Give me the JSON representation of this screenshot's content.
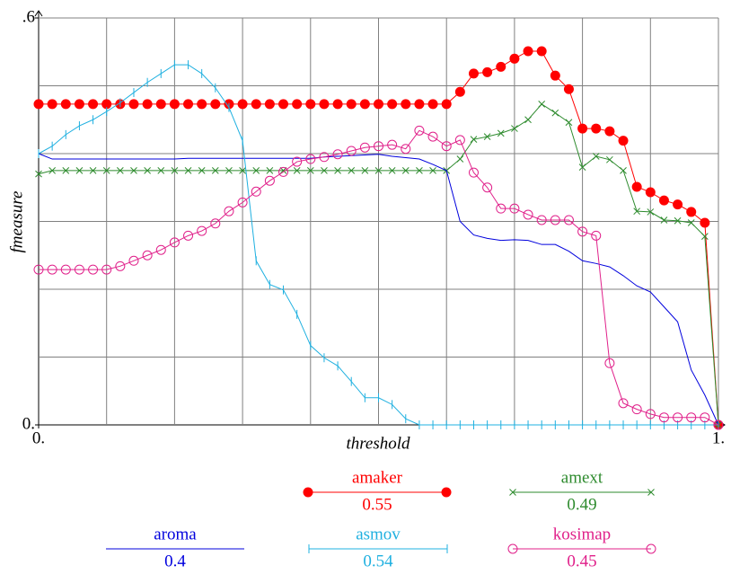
{
  "chart_data": {
    "type": "line",
    "x_label": "threshold",
    "y_label": "fmeasure",
    "xlim": [
      0,
      1
    ],
    "ylim": [
      0,
      0.6
    ],
    "xticks": [
      {
        "value": 0,
        "label": "0."
      },
      {
        "value": 1,
        "label": "1."
      }
    ],
    "yticks": [
      {
        "value": 0,
        "label": "0."
      },
      {
        "value": 0.6,
        "label": ".6"
      }
    ],
    "grid": true,
    "xgrid": [
      0.1,
      0.2,
      0.3,
      0.4,
      0.5,
      0.6,
      0.7,
      0.8,
      0.9,
      1
    ],
    "ygrid": [
      0.1,
      0.2,
      0.3,
      0.4,
      0.5,
      0.6
    ],
    "x": [
      0,
      0.02,
      0.04,
      0.06,
      0.08,
      0.1,
      0.12,
      0.14,
      0.16,
      0.18,
      0.2,
      0.22,
      0.24,
      0.26,
      0.28,
      0.3,
      0.32,
      0.34,
      0.36,
      0.38,
      0.4,
      0.42,
      0.44,
      0.46,
      0.48,
      0.5,
      0.52,
      0.54,
      0.56,
      0.58,
      0.6,
      0.62,
      0.64,
      0.66,
      0.68,
      0.7,
      0.72,
      0.74,
      0.76,
      0.78,
      0.8,
      0.82,
      0.84,
      0.86,
      0.88,
      0.9,
      0.92,
      0.94,
      0.96,
      0.98,
      1
    ],
    "series": [
      {
        "name": "amaker",
        "color": "#ff0000",
        "marker": "dot",
        "score": 0.55,
        "values": [
          0.473,
          0.473,
          0.473,
          0.473,
          0.473,
          0.473,
          0.473,
          0.473,
          0.473,
          0.473,
          0.473,
          0.473,
          0.473,
          0.473,
          0.473,
          0.473,
          0.473,
          0.473,
          0.473,
          0.473,
          0.473,
          0.473,
          0.473,
          0.473,
          0.473,
          0.473,
          0.473,
          0.473,
          0.473,
          0.473,
          0.473,
          0.491,
          0.518,
          0.52,
          0.528,
          0.54,
          0.551,
          0.551,
          0.515,
          0.495,
          0.437,
          0.437,
          0.433,
          0.419,
          0.351,
          0.343,
          0.331,
          0.325,
          0.314,
          0.298,
          0
        ]
      },
      {
        "name": "amext",
        "color": "#2e8b2e",
        "marker": "x",
        "score": 0.49,
        "values": [
          0.37,
          0.375,
          0.375,
          0.375,
          0.375,
          0.375,
          0.375,
          0.375,
          0.375,
          0.375,
          0.375,
          0.375,
          0.375,
          0.375,
          0.375,
          0.375,
          0.375,
          0.375,
          0.375,
          0.375,
          0.375,
          0.375,
          0.375,
          0.375,
          0.375,
          0.375,
          0.375,
          0.375,
          0.375,
          0.375,
          0.375,
          0.392,
          0.421,
          0.425,
          0.43,
          0.437,
          0.45,
          0.473,
          0.46,
          0.446,
          0.38,
          0.396,
          0.391,
          0.375,
          0.315,
          0.314,
          0.302,
          0.301,
          0.298,
          0.278,
          0
        ]
      },
      {
        "name": "aroma",
        "color": "#0000dd",
        "marker": "none",
        "score": 0.4,
        "values": [
          0.4,
          0.392,
          0.392,
          0.392,
          0.392,
          0.392,
          0.392,
          0.392,
          0.392,
          0.392,
          0.392,
          0.393,
          0.393,
          0.393,
          0.393,
          0.393,
          0.393,
          0.393,
          0.393,
          0.393,
          0.393,
          0.395,
          0.396,
          0.397,
          0.398,
          0.399,
          0.396,
          0.394,
          0.392,
          0.384,
          0.375,
          0.3,
          0.28,
          0.275,
          0.272,
          0.273,
          0.272,
          0.266,
          0.266,
          0.256,
          0.242,
          0.238,
          0.233,
          0.22,
          0.205,
          0.196,
          0.174,
          0.152,
          0.081,
          0.044,
          0
        ]
      },
      {
        "name": "asmov",
        "color": "#1fb0e0",
        "marker": "bar",
        "score": 0.54,
        "values": [
          0.4,
          0.411,
          0.428,
          0.441,
          0.45,
          0.462,
          0.475,
          0.49,
          0.505,
          0.518,
          0.531,
          0.531,
          0.518,
          0.497,
          0.468,
          0.419,
          0.242,
          0.207,
          0.199,
          0.163,
          0.117,
          0.099,
          0.087,
          0.064,
          0.04,
          0.04,
          0.03,
          0.009,
          0,
          0,
          0,
          0,
          0,
          0,
          0,
          0,
          0,
          0,
          0,
          0,
          0,
          0,
          0,
          0,
          0,
          0,
          0,
          0,
          0,
          0,
          0
        ]
      },
      {
        "name": "kosimap",
        "color": "#e0208a",
        "marker": "circle",
        "score": 0.45,
        "values": [
          0.229,
          0.229,
          0.229,
          0.229,
          0.229,
          0.229,
          0.234,
          0.242,
          0.25,
          0.258,
          0.269,
          0.279,
          0.286,
          0.297,
          0.315,
          0.328,
          0.344,
          0.36,
          0.373,
          0.388,
          0.392,
          0.395,
          0.399,
          0.404,
          0.409,
          0.411,
          0.413,
          0.407,
          0.434,
          0.425,
          0.411,
          0.42,
          0.372,
          0.35,
          0.319,
          0.319,
          0.31,
          0.302,
          0.302,
          0.302,
          0.285,
          0.279,
          0.091,
          0.032,
          0.023,
          0.016,
          0.011,
          0.011,
          0.011,
          0.011,
          0
        ]
      }
    ]
  }
}
